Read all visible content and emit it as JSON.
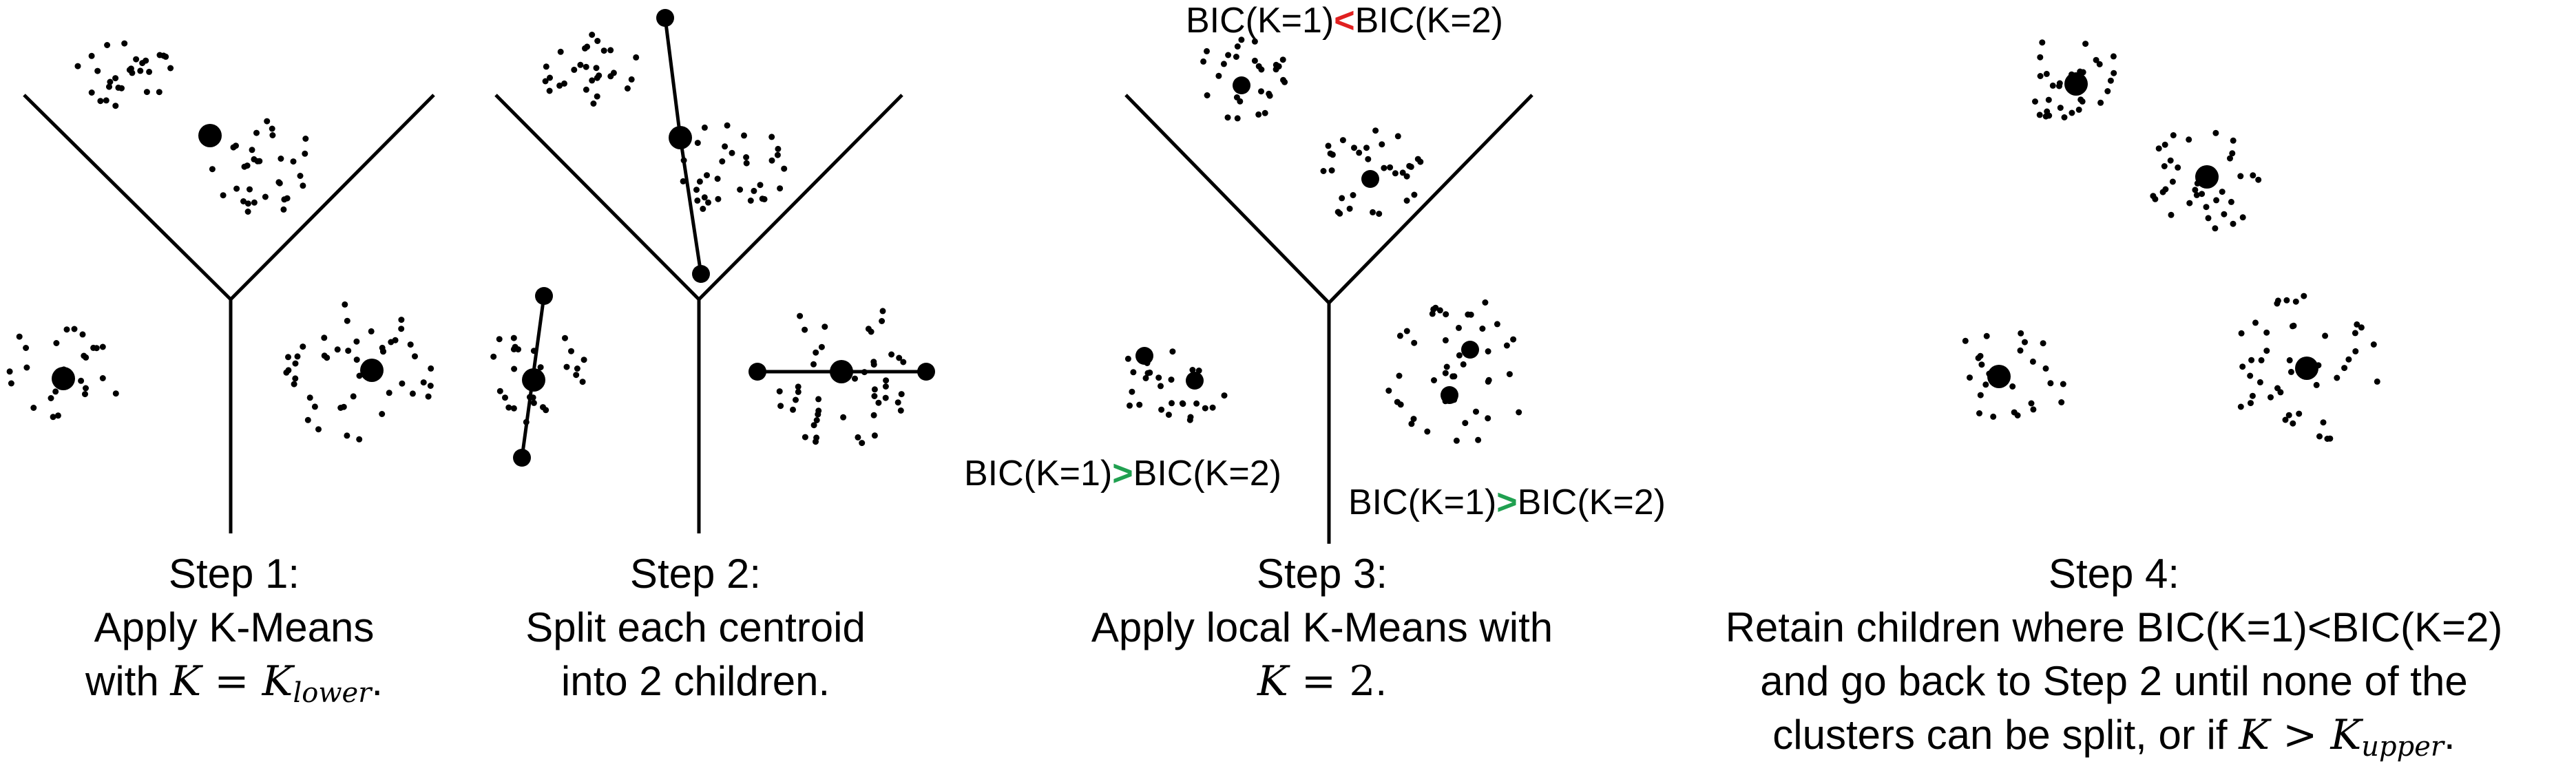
{
  "steps": [
    {
      "title": "Step 1:",
      "line1": "Apply K-Means",
      "line2_prefix": "with ",
      "math_lhs": "K",
      "math_eq": " = ",
      "math_rhs": "K",
      "math_sub": "lower",
      "line2_suffix": "."
    },
    {
      "title": "Step 2:",
      "line1": "Split each centroid",
      "line2": "into 2 children."
    },
    {
      "title": "Step 3:",
      "line1": "Apply local K-Means with",
      "math_lhs": "K",
      "math_eq": " = 2",
      "line2_suffix": "."
    },
    {
      "title": "Step 4:",
      "line1": "Retain children where BIC(K=1)<BIC(K=2)",
      "line2": "and go back to Step 2 until none of the",
      "line3_prefix": "clusters can be split, or if ",
      "math_lhs": "K",
      "math_eq": " > ",
      "math_rhs": "K",
      "math_sub": "upper",
      "line3_suffix": "."
    }
  ],
  "bic_labels": {
    "top": {
      "left": "BIC(K=1)",
      "symbol": "<",
      "right": "BIC(K=2)"
    },
    "left": {
      "left": "BIC(K=1)",
      "symbol": ">",
      "right": "BIC(K=2)"
    },
    "right": {
      "left": "BIC(K=1)",
      "symbol": ">",
      "right": "BIC(K=2)"
    }
  },
  "colors": {
    "less_than": "#e02020",
    "greater_than": "#20a050",
    "ink": "#000000"
  }
}
